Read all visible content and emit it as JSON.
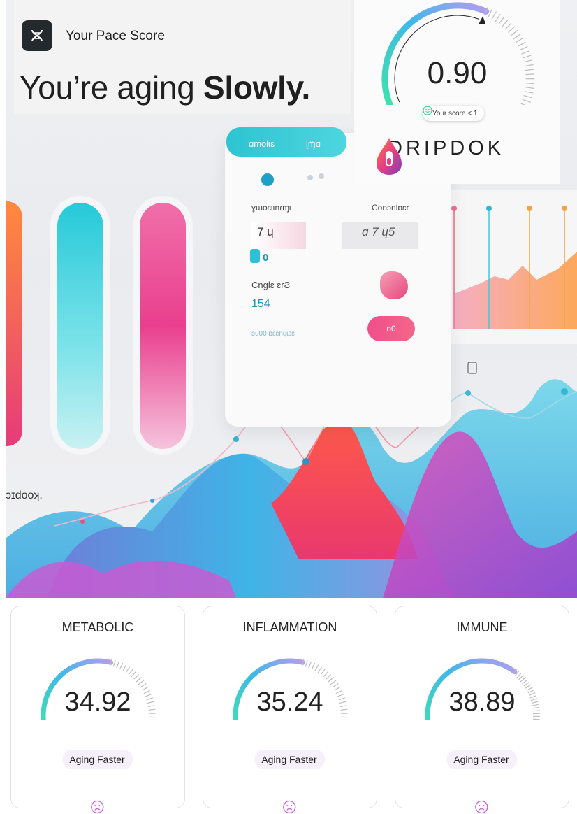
{
  "pace": {
    "title": "Your Pace Score",
    "line_prefix": "You’re aging ",
    "line_emphasis": "Slowly."
  },
  "gauge": {
    "score": "0.90",
    "value": 0.9,
    "pill_text": "Your score < 1"
  },
  "brand": {
    "name": "DRIPDOK"
  },
  "illustration": {
    "tab_left": "ɑmolɩɛ",
    "tab_right": "ɭɱ̃ɑ",
    "row1_left": "ɣɯɵɛɩɩnɾɱɩ",
    "row1_right": "Cɵnɔnlɒɛɾ",
    "val_a": "7 ɥ",
    "val_b": "ɑ 7 ɥ5",
    "val_c": "0",
    "row2_label": "Cnɡlɛ ɛɾƧ",
    "row2_value": "154",
    "footer_text": "ƨɥ00 ɒɛɛnɥɩɛɛ",
    "button": "ɒ0",
    "side_text": "ɔɪdooʞ."
  },
  "metrics": [
    {
      "label": "METABOLIC",
      "value": "34.92",
      "status": "Aging Faster"
    },
    {
      "label": "INFLAMMATION",
      "value": "35.24",
      "status": "Aging Faster"
    },
    {
      "label": "IMMUNE",
      "value": "38.89",
      "status": "Aging Faster"
    }
  ],
  "colors": {
    "gauge_start": "#3fe3a9",
    "gauge_mid": "#3fb8e8",
    "gauge_end": "#b59cf0",
    "status_face": "#d159d8",
    "dark_badge": "#24292e"
  }
}
